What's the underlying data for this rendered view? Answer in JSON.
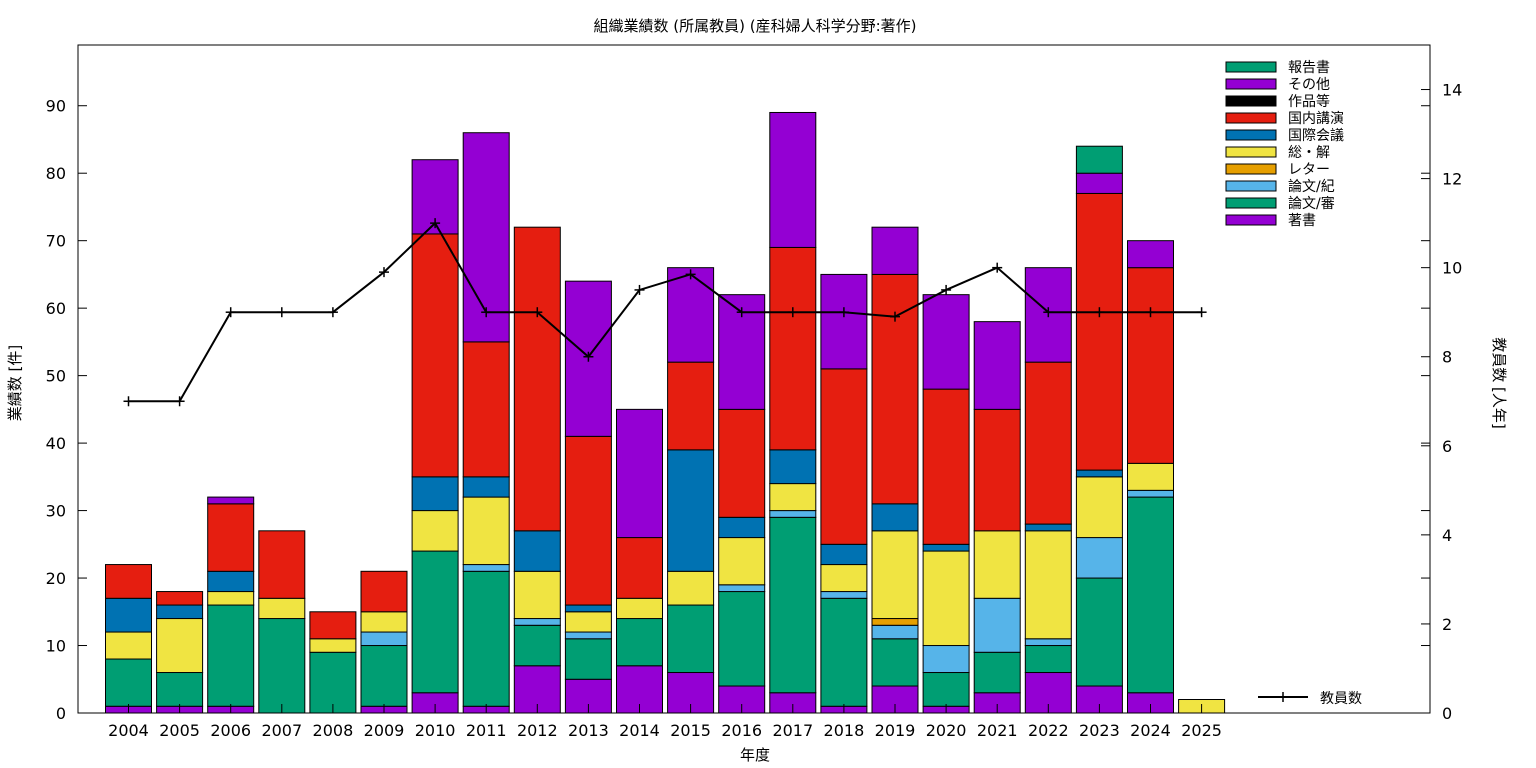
{
  "chart_data": {
    "type": "bar",
    "stacked": true,
    "title": "組織業績数 (所属教員) (産科婦人科学分野:著作)",
    "xlabel": "年度",
    "ylabel": "業績数 [件]",
    "y2label": "教員数 [人年]",
    "ylim": [
      0,
      99
    ],
    "y2lim": [
      0,
      15
    ],
    "yticks": [
      "0",
      "10",
      "20",
      "30",
      "40",
      "50",
      "60",
      "70",
      "80",
      "90"
    ],
    "y2ticks": [
      "0",
      "2",
      "4",
      "6",
      "8",
      "10",
      "12",
      "14"
    ],
    "grid": false,
    "legend_position": "top-right",
    "categories": [
      "2004",
      "2005",
      "2006",
      "2007",
      "2008",
      "2009",
      "2010",
      "2011",
      "2012",
      "2013",
      "2014",
      "2015",
      "2016",
      "2017",
      "2018",
      "2019",
      "2020",
      "2021",
      "2022",
      "2023",
      "2024",
      "2025"
    ],
    "series": [
      {
        "name": "著書",
        "color": "#9400d3",
        "values": [
          1,
          1,
          1,
          0,
          0,
          1,
          3,
          1,
          7,
          5,
          7,
          6,
          4,
          3,
          1,
          4,
          1,
          3,
          6,
          4,
          3,
          0
        ]
      },
      {
        "name": "論文/審",
        "color": "#009e73",
        "values": [
          7,
          5,
          15,
          14,
          9,
          9,
          21,
          20,
          6,
          6,
          7,
          10,
          14,
          26,
          16,
          7,
          5,
          6,
          4,
          16,
          29,
          0
        ]
      },
      {
        "name": "論文/紀",
        "color": "#56b4e9",
        "values": [
          0,
          0,
          0,
          0,
          0,
          2,
          0,
          1,
          1,
          1,
          0,
          0,
          1,
          1,
          1,
          2,
          4,
          8,
          1,
          6,
          1,
          0
        ]
      },
      {
        "name": "レター",
        "color": "#e69f00",
        "values": [
          0,
          0,
          0,
          0,
          0,
          0,
          0,
          0,
          0,
          0,
          0,
          0,
          0,
          0,
          0,
          1,
          0,
          0,
          0,
          0,
          0,
          0
        ]
      },
      {
        "name": "総・解",
        "color": "#f0e442",
        "values": [
          4,
          8,
          2,
          3,
          2,
          3,
          6,
          10,
          7,
          3,
          3,
          5,
          7,
          4,
          4,
          13,
          14,
          10,
          16,
          9,
          4,
          2
        ]
      },
      {
        "name": "国際会議",
        "color": "#0072b2",
        "values": [
          5,
          2,
          3,
          0,
          0,
          0,
          5,
          3,
          6,
          1,
          0,
          18,
          3,
          5,
          3,
          4,
          1,
          0,
          1,
          1,
          0,
          0
        ]
      },
      {
        "name": "国内講演",
        "color": "#e51e10",
        "values": [
          5,
          2,
          10,
          10,
          4,
          6,
          36,
          20,
          45,
          25,
          9,
          13,
          16,
          30,
          26,
          34,
          23,
          18,
          24,
          41,
          29,
          0
        ]
      },
      {
        "name": "作品等",
        "color": "#000000",
        "values": [
          0,
          0,
          0,
          0,
          0,
          0,
          0,
          0,
          0,
          0,
          0,
          0,
          0,
          0,
          0,
          0,
          0,
          0,
          0,
          0,
          0,
          0
        ]
      },
      {
        "name": "その他",
        "color": "#9400d3",
        "values": [
          0,
          0,
          1,
          0,
          0,
          0,
          11,
          31,
          0,
          23,
          19,
          14,
          17,
          20,
          14,
          7,
          14,
          13,
          14,
          3,
          4,
          0
        ]
      },
      {
        "name": "報告書",
        "color": "#009e73",
        "values": [
          0,
          0,
          0,
          0,
          0,
          0,
          0,
          0,
          0,
          0,
          0,
          0,
          0,
          0,
          0,
          0,
          0,
          0,
          0,
          4,
          0,
          0
        ]
      }
    ],
    "line_series": {
      "name": "教員数",
      "axis": "y2",
      "color": "#000000",
      "values": [
        7,
        7,
        9,
        9,
        9,
        9.9,
        11,
        9,
        9,
        8,
        9.5,
        9.85,
        9,
        9,
        9,
        8.9,
        9.5,
        10,
        9,
        9,
        9,
        9
      ]
    }
  }
}
